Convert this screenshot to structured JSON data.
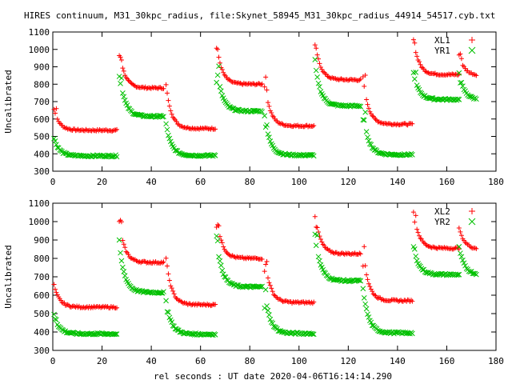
{
  "title": "HIRES continuum, M31_30kpc_radius, file:Skynet_58945_M31_30kpc_radius_44914_54517.cyb.txt",
  "xlabel": "rel seconds : UT date 2020-04-06T16:14:14.290",
  "colors": {
    "red": "#ff0000",
    "green": "#00c000"
  },
  "chart_data": [
    {
      "type": "scatter",
      "ylabel": "Uncalibrated",
      "xlim": [
        0,
        180
      ],
      "ylim": [
        300,
        1100
      ],
      "xticks": [
        0,
        20,
        40,
        60,
        80,
        100,
        120,
        140,
        160,
        180
      ],
      "yticks": [
        300,
        400,
        500,
        600,
        700,
        800,
        900,
        1000,
        1100
      ],
      "legend": [
        "XL1",
        "YR1"
      ],
      "legend_placement": "top-right",
      "series": [
        {
          "name": "XL1",
          "marker": "plus",
          "color": "#ff0000",
          "segments": [
            {
              "t0": 0.5,
              "t1": 26,
              "base": 535,
              "jump": 120
            },
            {
              "t0": 27,
              "t1": 45,
              "base": 778,
              "jump": 220
            },
            {
              "t0": 46,
              "t1": 66,
              "base": 545,
              "jump": 250
            },
            {
              "t0": 66.5,
              "t1": 85,
              "base": 800,
              "jump": 230
            },
            {
              "t0": 86,
              "t1": 106,
              "base": 560,
              "jump": 260
            },
            {
              "t0": 106.5,
              "t1": 125,
              "base": 825,
              "jump": 220
            },
            {
              "t0": 126,
              "t1": 146,
              "base": 570,
              "jump": 270
            },
            {
              "t0": 146.5,
              "t1": 165,
              "base": 855,
              "jump": 200
            },
            {
              "t0": 165,
              "t1": 172,
              "base": 850,
              "jump": 120
            }
          ]
        },
        {
          "name": "YR1",
          "marker": "x",
          "color": "#00c000",
          "segments": [
            {
              "t0": 0.5,
              "t1": 26,
              "base": 388,
              "jump": 100
            },
            {
              "t0": 27,
              "t1": 45,
              "base": 615,
              "jump": 260
            },
            {
              "t0": 46,
              "t1": 66,
              "base": 390,
              "jump": 180
            },
            {
              "t0": 66.5,
              "t1": 85,
              "base": 645,
              "jump": 260
            },
            {
              "t0": 86,
              "t1": 106,
              "base": 392,
              "jump": 230
            },
            {
              "t0": 106.5,
              "t1": 125,
              "base": 675,
              "jump": 250
            },
            {
              "t0": 126,
              "t1": 146,
              "base": 395,
              "jump": 240
            },
            {
              "t0": 146.5,
              "t1": 165,
              "base": 712,
              "jump": 150
            },
            {
              "t0": 165,
              "t1": 172,
              "base": 710,
              "jump": 150
            }
          ]
        }
      ]
    },
    {
      "type": "scatter",
      "ylabel": "Uncalibrated",
      "xlim": [
        0,
        180
      ],
      "ylim": [
        300,
        1100
      ],
      "xticks": [
        0,
        20,
        40,
        60,
        80,
        100,
        120,
        140,
        160,
        180
      ],
      "yticks": [
        300,
        400,
        500,
        600,
        700,
        800,
        900,
        1000,
        1100
      ],
      "legend": [
        "XL2",
        "YR2"
      ],
      "legend_placement": "top-right",
      "series": [
        {
          "name": "XL2",
          "marker": "plus",
          "color": "#ff0000",
          "segments": [
            {
              "t0": 0.5,
              "t1": 26,
              "base": 535,
              "jump": 120
            },
            {
              "t0": 27,
              "t1": 45,
              "base": 778,
              "jump": 220
            },
            {
              "t0": 46,
              "t1": 66,
              "base": 548,
              "jump": 250
            },
            {
              "t0": 66.5,
              "t1": 85,
              "base": 800,
              "jump": 230
            },
            {
              "t0": 86,
              "t1": 106,
              "base": 560,
              "jump": 260
            },
            {
              "t0": 106.5,
              "t1": 125,
              "base": 825,
              "jump": 220
            },
            {
              "t0": 126,
              "t1": 146,
              "base": 570,
              "jump": 270
            },
            {
              "t0": 146.5,
              "t1": 165,
              "base": 855,
              "jump": 200
            },
            {
              "t0": 165,
              "t1": 172,
              "base": 850,
              "jump": 120
            }
          ]
        },
        {
          "name": "YR2",
          "marker": "x",
          "color": "#00c000",
          "segments": [
            {
              "t0": 0.5,
              "t1": 26,
              "base": 390,
              "jump": 100
            },
            {
              "t0": 27,
              "t1": 45,
              "base": 615,
              "jump": 260
            },
            {
              "t0": 46,
              "t1": 66,
              "base": 388,
              "jump": 180
            },
            {
              "t0": 66.5,
              "t1": 85,
              "base": 645,
              "jump": 260
            },
            {
              "t0": 86,
              "t1": 106,
              "base": 392,
              "jump": 230
            },
            {
              "t0": 106.5,
              "t1": 125,
              "base": 678,
              "jump": 250
            },
            {
              "t0": 126,
              "t1": 146,
              "base": 395,
              "jump": 240
            },
            {
              "t0": 146.5,
              "t1": 165,
              "base": 712,
              "jump": 150
            },
            {
              "t0": 165,
              "t1": 172,
              "base": 710,
              "jump": 150
            }
          ]
        }
      ]
    }
  ]
}
